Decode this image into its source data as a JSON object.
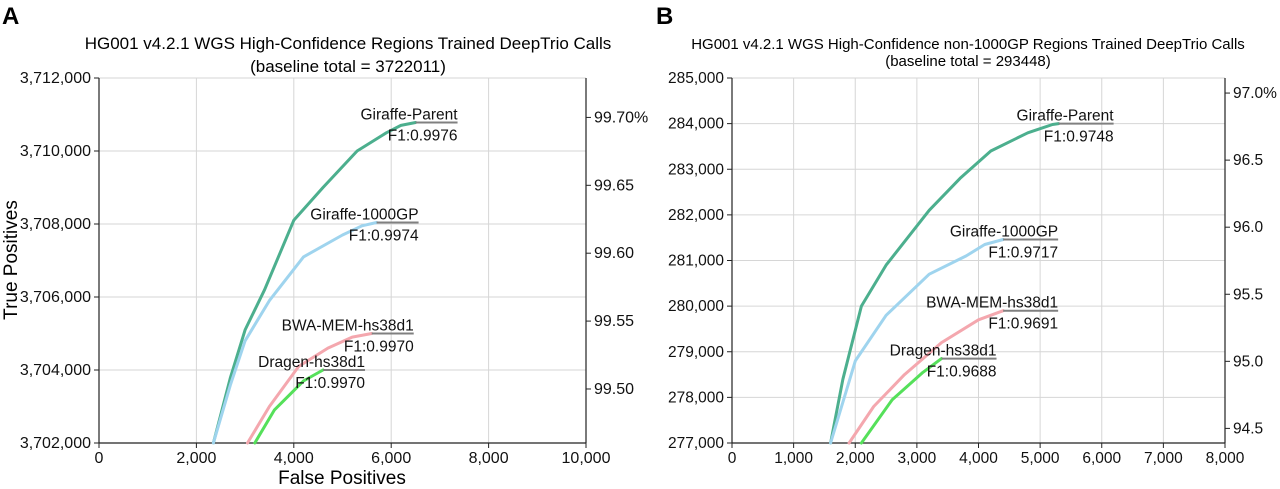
{
  "chart_data": [
    {
      "panel": "A",
      "type": "line",
      "title": "HG001 v4.2.1 WGS High-Confidence Regions Trained DeepTrio Calls",
      "subtitle": "(baseline total = 3722011)",
      "xlabel": "False Positives",
      "ylabel": "True Positives",
      "xlim": [
        0,
        10000
      ],
      "ylim": [
        3702000,
        3712000
      ],
      "x_ticks": [
        0,
        2000,
        4000,
        6000,
        8000,
        10000
      ],
      "x_tick_labels": [
        "0",
        "2,000",
        "4,000",
        "6,000",
        "8,000",
        "10,000"
      ],
      "y_ticks": [
        3702000,
        3704000,
        3706000,
        3708000,
        3710000,
        3712000
      ],
      "y_tick_labels": [
        "3,702,000",
        "3,704,000",
        "3,706,000",
        "3,708,000",
        "3,710,000",
        "3,712,000"
      ],
      "y2_ticks": [
        {
          "label": "99.50",
          "value": 3703480
        },
        {
          "label": "99.55",
          "value": 3705340
        },
        {
          "label": "99.60",
          "value": 3707200
        },
        {
          "label": "99.65",
          "value": 3709060
        },
        {
          "label": "99.70%",
          "value": 3710920
        }
      ],
      "grid": true,
      "series": [
        {
          "name": "Giraffe-Parent",
          "f1": "F1:0.9976",
          "color": "#4caf8e",
          "x": [
            2350,
            2700,
            3000,
            3400,
            4000,
            4600,
            5300,
            5900,
            6200,
            6500
          ],
          "y": [
            3702000,
            3703800,
            3705100,
            3706200,
            3708100,
            3709000,
            3710000,
            3710500,
            3710700,
            3710780
          ]
        },
        {
          "name": "Giraffe-1000GP",
          "f1": "F1:0.9974",
          "color": "#9fd4ee",
          "x": [
            2350,
            2700,
            3000,
            3500,
            4200,
            5000,
            5400,
            5700
          ],
          "y": [
            3702000,
            3703600,
            3704800,
            3705900,
            3707100,
            3707700,
            3707950,
            3708040
          ]
        },
        {
          "name": "BWA-MEM-hs38d1",
          "f1": "F1:0.9970",
          "color": "#f4a7ae",
          "x": [
            3050,
            3500,
            4100,
            4700,
            5200,
            5600
          ],
          "y": [
            3702000,
            3703000,
            3704100,
            3704600,
            3704900,
            3705000
          ]
        },
        {
          "name": "Dragen-hs38d1",
          "f1": "F1:0.9970",
          "color": "#55e05a",
          "x": [
            3200,
            3600,
            4200,
            4600
          ],
          "y": [
            3702000,
            3702900,
            3703700,
            3704000
          ]
        }
      ]
    },
    {
      "panel": "B",
      "type": "line",
      "title": "HG001 v4.2.1 WGS High-Confidence non-1000GP Regions Trained DeepTrio Calls",
      "subtitle": "(baseline total = 293448)",
      "xlabel": "",
      "ylabel": "",
      "xlim": [
        0,
        8000
      ],
      "ylim": [
        277000,
        285000
      ],
      "x_ticks": [
        0,
        1000,
        2000,
        3000,
        4000,
        5000,
        6000,
        7000,
        8000
      ],
      "x_tick_labels": [
        "0",
        "1,000",
        "2,000",
        "3,000",
        "4,000",
        "5,000",
        "6,000",
        "7,000",
        "8,000"
      ],
      "y_ticks": [
        277000,
        278000,
        279000,
        280000,
        281000,
        282000,
        283000,
        284000,
        285000
      ],
      "y_tick_labels": [
        "277,000",
        "278,000",
        "279,000",
        "280,000",
        "281,000",
        "282,000",
        "283,000",
        "284,000",
        "285,000"
      ],
      "y2_ticks": [
        {
          "label": "94.5",
          "value": 277320
        },
        {
          "label": "95.0",
          "value": 278790
        },
        {
          "label": "95.5",
          "value": 280260
        },
        {
          "label": "96.0",
          "value": 281730
        },
        {
          "label": "96.5",
          "value": 283200
        },
        {
          "label": "97.0%",
          "value": 284670
        }
      ],
      "grid": true,
      "series": [
        {
          "name": "Giraffe-Parent",
          "f1": "F1:0.9748",
          "color": "#4caf8e",
          "x": [
            1600,
            1800,
            2100,
            2500,
            3200,
            3700,
            4200,
            4800,
            5200,
            5300
          ],
          "y": [
            277000,
            278400,
            280000,
            280900,
            282100,
            282800,
            283400,
            283800,
            283980,
            284000
          ]
        },
        {
          "name": "Giraffe-1000GP",
          "f1": "F1:0.9717",
          "color": "#9fd4ee",
          "x": [
            1600,
            2000,
            2500,
            3200,
            3800,
            4100,
            4400
          ],
          "y": [
            277000,
            278800,
            279800,
            280700,
            281100,
            281350,
            281460
          ]
        },
        {
          "name": "BWA-MEM-hs38d1",
          "f1": "F1:0.9691",
          "color": "#f4a7ae",
          "x": [
            1900,
            2300,
            2800,
            3400,
            4000,
            4400
          ],
          "y": [
            277000,
            277800,
            278500,
            279200,
            279700,
            279900
          ]
        },
        {
          "name": "Dragen-hs38d1",
          "f1": "F1:0.9688",
          "color": "#55e05a",
          "x": [
            2100,
            2600,
            3100,
            3400
          ],
          "y": [
            277000,
            277950,
            278550,
            278850
          ]
        }
      ]
    }
  ]
}
